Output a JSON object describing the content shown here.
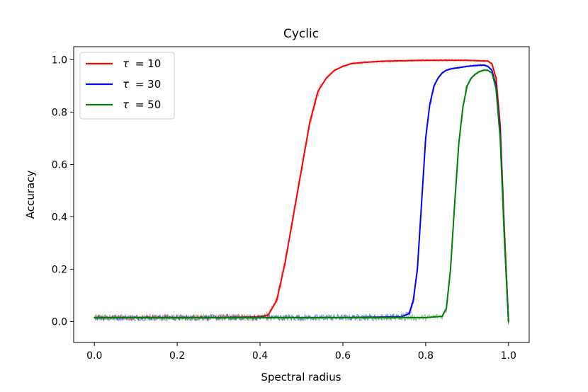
{
  "chart_data": {
    "type": "line",
    "title": "Cyclic",
    "xlabel": "Spectral radius",
    "ylabel": "Accuracy",
    "xlim": [
      -0.05,
      1.05
    ],
    "ylim": [
      -0.08,
      1.05
    ],
    "xticks": [
      0.0,
      0.2,
      0.4,
      0.6,
      0.8,
      1.0
    ],
    "xtick_labels": [
      "0.0",
      "0.2",
      "0.4",
      "0.6",
      "0.8",
      "1.0"
    ],
    "yticks": [
      0.0,
      0.2,
      0.4,
      0.6,
      0.8,
      1.0
    ],
    "ytick_labels": [
      "0.0",
      "0.2",
      "0.4",
      "0.6",
      "0.8",
      "1.0"
    ],
    "grid": false,
    "legend_position": "top-left",
    "series": [
      {
        "name": "τ = 10",
        "symbol": "τ",
        "value_label": "= 10",
        "color": "#ff0000",
        "x": [
          0.0,
          0.1,
          0.2,
          0.3,
          0.4,
          0.42,
          0.44,
          0.46,
          0.48,
          0.5,
          0.52,
          0.54,
          0.56,
          0.58,
          0.6,
          0.62,
          0.65,
          0.7,
          0.8,
          0.9,
          0.95,
          0.96,
          0.97,
          0.98,
          0.99,
          1.0
        ],
        "values": [
          0.015,
          0.015,
          0.015,
          0.015,
          0.018,
          0.025,
          0.08,
          0.22,
          0.4,
          0.58,
          0.76,
          0.88,
          0.93,
          0.96,
          0.975,
          0.985,
          0.99,
          0.995,
          0.998,
          0.998,
          0.995,
          0.985,
          0.93,
          0.75,
          0.35,
          0.0
        ]
      },
      {
        "name": "τ = 30",
        "symbol": "τ",
        "value_label": "= 30",
        "color": "#0000ff",
        "x": [
          0.0,
          0.2,
          0.4,
          0.6,
          0.74,
          0.76,
          0.77,
          0.78,
          0.79,
          0.8,
          0.81,
          0.82,
          0.83,
          0.84,
          0.85,
          0.86,
          0.88,
          0.9,
          0.92,
          0.94,
          0.95,
          0.96,
          0.97,
          0.98,
          0.99,
          1.0
        ],
        "values": [
          0.015,
          0.015,
          0.015,
          0.015,
          0.018,
          0.03,
          0.08,
          0.2,
          0.45,
          0.7,
          0.83,
          0.9,
          0.93,
          0.95,
          0.96,
          0.965,
          0.97,
          0.975,
          0.978,
          0.98,
          0.975,
          0.96,
          0.9,
          0.72,
          0.33,
          0.0
        ]
      },
      {
        "name": "τ = 50",
        "symbol": "τ",
        "value_label": "= 50",
        "color": "#008000",
        "x": [
          0.0,
          0.2,
          0.4,
          0.6,
          0.8,
          0.84,
          0.85,
          0.86,
          0.87,
          0.88,
          0.89,
          0.9,
          0.91,
          0.92,
          0.93,
          0.94,
          0.95,
          0.96,
          0.97,
          0.98,
          0.99,
          1.0
        ],
        "values": [
          0.015,
          0.015,
          0.015,
          0.015,
          0.015,
          0.02,
          0.05,
          0.2,
          0.45,
          0.68,
          0.82,
          0.9,
          0.93,
          0.945,
          0.955,
          0.96,
          0.96,
          0.95,
          0.89,
          0.7,
          0.32,
          0.0
        ]
      }
    ]
  }
}
